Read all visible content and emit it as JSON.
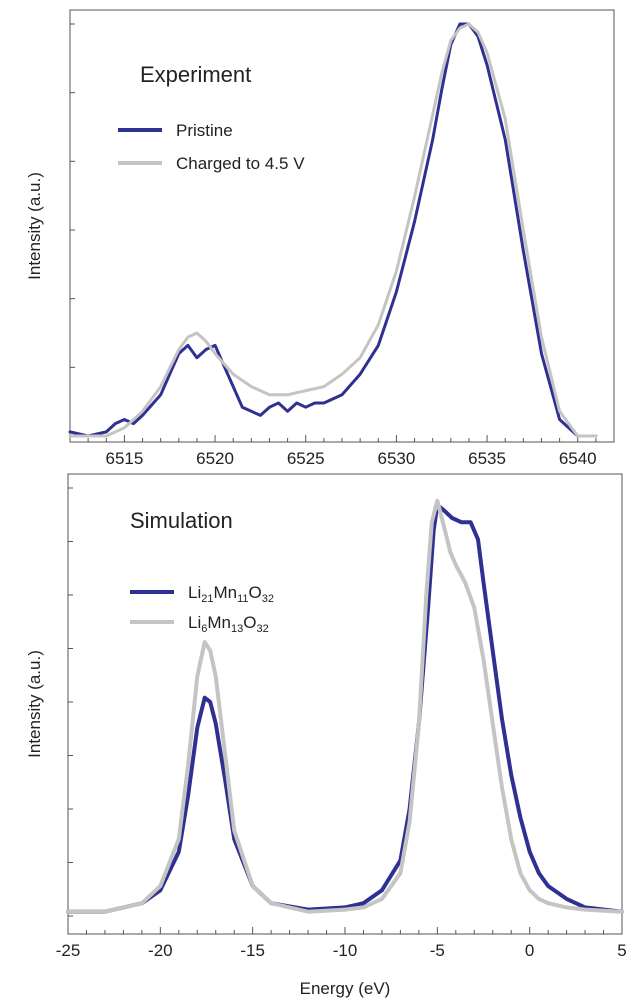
{
  "chart_data": [
    {
      "type": "line",
      "title": "Experiment",
      "xlabel": "",
      "ylabel": "Intensity (a.u.)",
      "xlim": [
        6512,
        6542
      ],
      "ylim": [
        0,
        1.0
      ],
      "xticks": [
        "6515",
        "6520",
        "6525",
        "6530",
        "6535",
        "6540"
      ],
      "grid": false,
      "legend_position": "upper-left",
      "colors": {
        "Pristine": "#2e3192",
        "Charged to 4.5 V": "#c4c4c4"
      },
      "series": [
        {
          "name": "Pristine",
          "points": [
            [
              6512,
              0.01
            ],
            [
              6513,
              0.0
            ],
            [
              6514,
              0.01
            ],
            [
              6514.5,
              0.03
            ],
            [
              6515,
              0.04
            ],
            [
              6515.5,
              0.03
            ],
            [
              6516,
              0.05
            ],
            [
              6517,
              0.1
            ],
            [
              6517.5,
              0.15
            ],
            [
              6518,
              0.2
            ],
            [
              6518.5,
              0.22
            ],
            [
              6519,
              0.19
            ],
            [
              6519.5,
              0.21
            ],
            [
              6520,
              0.22
            ],
            [
              6520.5,
              0.17
            ],
            [
              6521,
              0.12
            ],
            [
              6521.5,
              0.07
            ],
            [
              6522,
              0.06
            ],
            [
              6522.5,
              0.05
            ],
            [
              6523,
              0.07
            ],
            [
              6523.5,
              0.08
            ],
            [
              6524,
              0.06
            ],
            [
              6524.5,
              0.08
            ],
            [
              6525,
              0.07
            ],
            [
              6525.5,
              0.08
            ],
            [
              6526,
              0.08
            ],
            [
              6527,
              0.1
            ],
            [
              6528,
              0.15
            ],
            [
              6529,
              0.22
            ],
            [
              6530,
              0.35
            ],
            [
              6531,
              0.52
            ],
            [
              6532,
              0.72
            ],
            [
              6532.5,
              0.84
            ],
            [
              6533,
              0.95
            ],
            [
              6533.5,
              1.0
            ],
            [
              6534,
              1.0
            ],
            [
              6534.5,
              0.97
            ],
            [
              6535,
              0.9
            ],
            [
              6536,
              0.72
            ],
            [
              6537,
              0.45
            ],
            [
              6538,
              0.2
            ],
            [
              6539,
              0.04
            ],
            [
              6540,
              0.0
            ],
            [
              6541,
              0.0
            ]
          ]
        },
        {
          "name": "Charged to 4.5 V",
          "points": [
            [
              6512,
              0.0
            ],
            [
              6513,
              0.0
            ],
            [
              6514,
              0.0
            ],
            [
              6515,
              0.02
            ],
            [
              6516,
              0.06
            ],
            [
              6517,
              0.12
            ],
            [
              6518,
              0.21
            ],
            [
              6518.5,
              0.24
            ],
            [
              6519,
              0.25
            ],
            [
              6519.5,
              0.23
            ],
            [
              6520,
              0.2
            ],
            [
              6521,
              0.15
            ],
            [
              6522,
              0.12
            ],
            [
              6523,
              0.1
            ],
            [
              6524,
              0.1
            ],
            [
              6525,
              0.11
            ],
            [
              6526,
              0.12
            ],
            [
              6527,
              0.15
            ],
            [
              6528,
              0.19
            ],
            [
              6529,
              0.27
            ],
            [
              6530,
              0.4
            ],
            [
              6531,
              0.58
            ],
            [
              6532,
              0.78
            ],
            [
              6532.5,
              0.88
            ],
            [
              6533,
              0.96
            ],
            [
              6533.5,
              0.99
            ],
            [
              6534,
              1.0
            ],
            [
              6534.5,
              0.98
            ],
            [
              6535,
              0.93
            ],
            [
              6536,
              0.77
            ],
            [
              6537,
              0.5
            ],
            [
              6538,
              0.24
            ],
            [
              6539,
              0.06
            ],
            [
              6540,
              0.0
            ],
            [
              6541,
              0.0
            ]
          ]
        }
      ]
    },
    {
      "type": "line",
      "title": "Simulation",
      "xlabel": "Energy (eV)",
      "ylabel": "Intensity (a.u.)",
      "xlim": [
        -25,
        5
      ],
      "ylim": [
        0,
        1.0
      ],
      "xticks": [
        "-25",
        "-20",
        "-15",
        "-10",
        "-5",
        "0",
        "5"
      ],
      "grid": false,
      "legend_position": "upper-left",
      "colors": {
        "Li21Mn11O32": "#2e3192",
        "Li6Mn13O32": "#c4c4c4"
      },
      "series": [
        {
          "name": "Li21Mn11O32",
          "legend_parts": [
            [
              "Li",
              ""
            ],
            [
              "21",
              "sub"
            ],
            [
              "Mn",
              ""
            ],
            [
              "11",
              "sub"
            ],
            [
              "O",
              ""
            ],
            [
              "32",
              "sub"
            ]
          ],
          "points": [
            [
              -25,
              0.01
            ],
            [
              -23,
              0.01
            ],
            [
              -21,
              0.03
            ],
            [
              -20,
              0.06
            ],
            [
              -19,
              0.15
            ],
            [
              -18.5,
              0.28
            ],
            [
              -18,
              0.44
            ],
            [
              -17.6,
              0.51
            ],
            [
              -17.3,
              0.5
            ],
            [
              -17,
              0.45
            ],
            [
              -16.5,
              0.32
            ],
            [
              -16,
              0.18
            ],
            [
              -15,
              0.07
            ],
            [
              -14,
              0.03
            ],
            [
              -12,
              0.015
            ],
            [
              -10,
              0.02
            ],
            [
              -9,
              0.03
            ],
            [
              -8,
              0.06
            ],
            [
              -7,
              0.13
            ],
            [
              -6.5,
              0.25
            ],
            [
              -6,
              0.45
            ],
            [
              -5.5,
              0.72
            ],
            [
              -5.2,
              0.9
            ],
            [
              -5,
              0.96
            ],
            [
              -4.7,
              0.95
            ],
            [
              -4.2,
              0.93
            ],
            [
              -3.7,
              0.92
            ],
            [
              -3.2,
              0.92
            ],
            [
              -2.8,
              0.88
            ],
            [
              -2.5,
              0.78
            ],
            [
              -2,
              0.62
            ],
            [
              -1.5,
              0.46
            ],
            [
              -1,
              0.33
            ],
            [
              -0.5,
              0.23
            ],
            [
              0,
              0.15
            ],
            [
              0.5,
              0.1
            ],
            [
              1,
              0.07
            ],
            [
              2,
              0.04
            ],
            [
              3,
              0.02
            ],
            [
              5,
              0.01
            ]
          ]
        },
        {
          "name": "Li6Mn13O32",
          "legend_parts": [
            [
              "Li",
              ""
            ],
            [
              "6",
              "sub"
            ],
            [
              "Mn",
              ""
            ],
            [
              "13",
              "sub"
            ],
            [
              "O",
              ""
            ],
            [
              "32",
              "sub"
            ]
          ],
          "points": [
            [
              -25,
              0.01
            ],
            [
              -23,
              0.01
            ],
            [
              -21,
              0.03
            ],
            [
              -20,
              0.07
            ],
            [
              -19,
              0.18
            ],
            [
              -18.5,
              0.35
            ],
            [
              -18,
              0.56
            ],
            [
              -17.6,
              0.64
            ],
            [
              -17.3,
              0.62
            ],
            [
              -17,
              0.56
            ],
            [
              -16.5,
              0.38
            ],
            [
              -16,
              0.2
            ],
            [
              -15,
              0.07
            ],
            [
              -14,
              0.03
            ],
            [
              -12,
              0.01
            ],
            [
              -10,
              0.015
            ],
            [
              -9,
              0.02
            ],
            [
              -8,
              0.04
            ],
            [
              -7,
              0.1
            ],
            [
              -6.5,
              0.22
            ],
            [
              -6,
              0.45
            ],
            [
              -5.6,
              0.75
            ],
            [
              -5.3,
              0.92
            ],
            [
              -5,
              0.97
            ],
            [
              -4.7,
              0.92
            ],
            [
              -4.3,
              0.85
            ],
            [
              -4,
              0.82
            ],
            [
              -3.5,
              0.78
            ],
            [
              -3,
              0.72
            ],
            [
              -2.5,
              0.6
            ],
            [
              -2,
              0.45
            ],
            [
              -1.5,
              0.3
            ],
            [
              -1,
              0.18
            ],
            [
              -0.5,
              0.1
            ],
            [
              0,
              0.06
            ],
            [
              0.5,
              0.04
            ],
            [
              1,
              0.03
            ],
            [
              2,
              0.02
            ],
            [
              3,
              0.015
            ],
            [
              5,
              0.01
            ]
          ]
        }
      ]
    }
  ]
}
